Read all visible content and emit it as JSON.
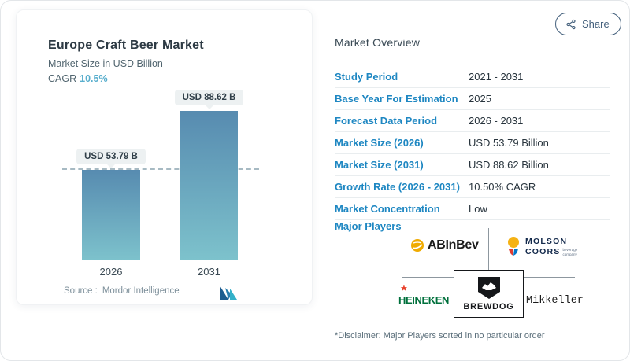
{
  "share": {
    "label": "Share"
  },
  "chart_panel": {
    "title": "Europe Craft Beer Market",
    "subtitle": "Market Size in USD Billion",
    "cagr_label": "CAGR",
    "cagr_value": "10.5%",
    "source_label": "Source :",
    "source_value": "Mordor Intelligence"
  },
  "chart_data": {
    "type": "bar",
    "title": "Europe Craft Beer Market",
    "subtitle": "Market Size in USD Billion",
    "ylabel": "Market Size (USD Billion)",
    "categories": [
      "2026",
      "2031"
    ],
    "values": [
      53.79,
      88.62
    ],
    "bar_labels": [
      "USD 53.79 B",
      "USD 88.62 B"
    ],
    "reference_line": 53.79,
    "ylim": [
      0,
      88.62
    ],
    "grid": false,
    "colors": {
      "bar_top": "#578bb0",
      "bar_bottom": "#7dc2cc",
      "reference_line": "#a7bac3"
    }
  },
  "overview": {
    "title": "Market Overview",
    "rows": [
      {
        "label": "Study Period",
        "value": "2021 - 2031"
      },
      {
        "label": "Base Year For Estimation",
        "value": "2025"
      },
      {
        "label": "Forecast Data Period",
        "value": "2026 - 2031"
      },
      {
        "label": "Market Size (2026)",
        "value": "USD 53.79 Billion"
      },
      {
        "label": "Market Size (2031)",
        "value": "USD 88.62 Billion"
      },
      {
        "label": "Growth Rate (2026 - 2031)",
        "value": "10.50% CAGR"
      },
      {
        "label": "Market Concentration",
        "value": "Low"
      }
    ],
    "major_players_label": "Major Players",
    "major_players": [
      "AB InBev",
      "Molson Coors",
      "Heineken",
      "BrewDog",
      "Mikkeller"
    ],
    "disclaimer": "*Disclaimer: Major Players sorted in no particular order"
  },
  "logos": {
    "abinbev_text": "ABInBev",
    "molson_line1": "MOLSON",
    "molson_line2": "COORS",
    "molson_sub1": "beverage",
    "molson_sub2": "company",
    "heineken_star": "★",
    "heineken_text": "HEINEKEN",
    "brewdog_text": "BREWDOG",
    "mikkeller_text": "Mikkeller"
  },
  "colors": {
    "accent_label_blue": "#1e87c2",
    "cagr_teal": "#58aecd",
    "heineken_green": "#00703c",
    "heineken_star_red": "#e8402a",
    "molson_navy": "#13294b",
    "abinbev_gold": "#f0ab00",
    "brewdog_black": "#15171a",
    "mordor_navy": "#1d5c8f",
    "mordor_teal": "#33b1c9"
  }
}
